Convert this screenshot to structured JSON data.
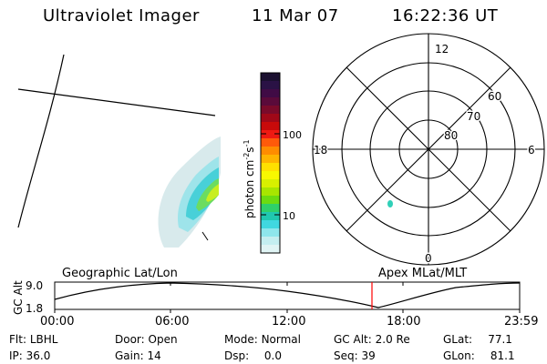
{
  "header": {
    "instrument": "Ultraviolet Imager",
    "date": "11 Mar 07",
    "time": "16:22:36 UT"
  },
  "colorbar": {
    "unit_text": "photon cm",
    "unit_exp1": "-2",
    "unit_mid": "s",
    "unit_exp2": "-1",
    "ticks": [
      {
        "label": "100",
        "value": 100
      },
      {
        "label": "10",
        "value": 10
      }
    ],
    "colors": [
      "#1b1030",
      "#2a1245",
      "#400b45",
      "#5a0a3a",
      "#7a0a2a",
      "#a00818",
      "#c80a0a",
      "#ee1a12",
      "#ff5a0a",
      "#ff8c00",
      "#ffb400",
      "#ffe000",
      "#f8f800",
      "#d8f000",
      "#a8e600",
      "#6cdc10",
      "#2fd06a",
      "#20c8b0",
      "#40d8e0",
      "#8ee6ec",
      "#c4eef0",
      "#e0f4f4"
    ]
  },
  "polar_plot": {
    "mlt_labels": [
      "12",
      "18",
      "6",
      "0"
    ],
    "lat_labels": [
      "60",
      "70",
      "80"
    ]
  },
  "timeline": {
    "axis_label": "GC Alt",
    "y_ticks": [
      "9.0",
      "1.8"
    ],
    "left_title": "Geographic Lat/Lon",
    "right_title": "Apex MLat/MLT",
    "x_ticks": [
      "00:00",
      "06:00",
      "12:00",
      "18:00",
      "23:59"
    ],
    "current_time_marker": "16:22:36",
    "marker_color": "#ff0000"
  },
  "status": {
    "flt_label": "Flt:",
    "flt_value": "LBHL",
    "ip_label": "IP:",
    "ip_value": "36.0",
    "door_label": "Door:",
    "door_value": "Open",
    "gain_label": "Gain:",
    "gain_value": "14",
    "mode_label": "Mode:",
    "mode_value": "Normal",
    "dsp_label": "Dsp:",
    "dsp_value": "0.0",
    "gcalt_label": "GC Alt:",
    "gcalt_value": "2.0 Re",
    "seq_label": "Seq:",
    "seq_value": "39",
    "glat_label": "GLat:",
    "glat_value": "77.1",
    "glon_label": "GLon:",
    "glon_value": "81.1"
  }
}
